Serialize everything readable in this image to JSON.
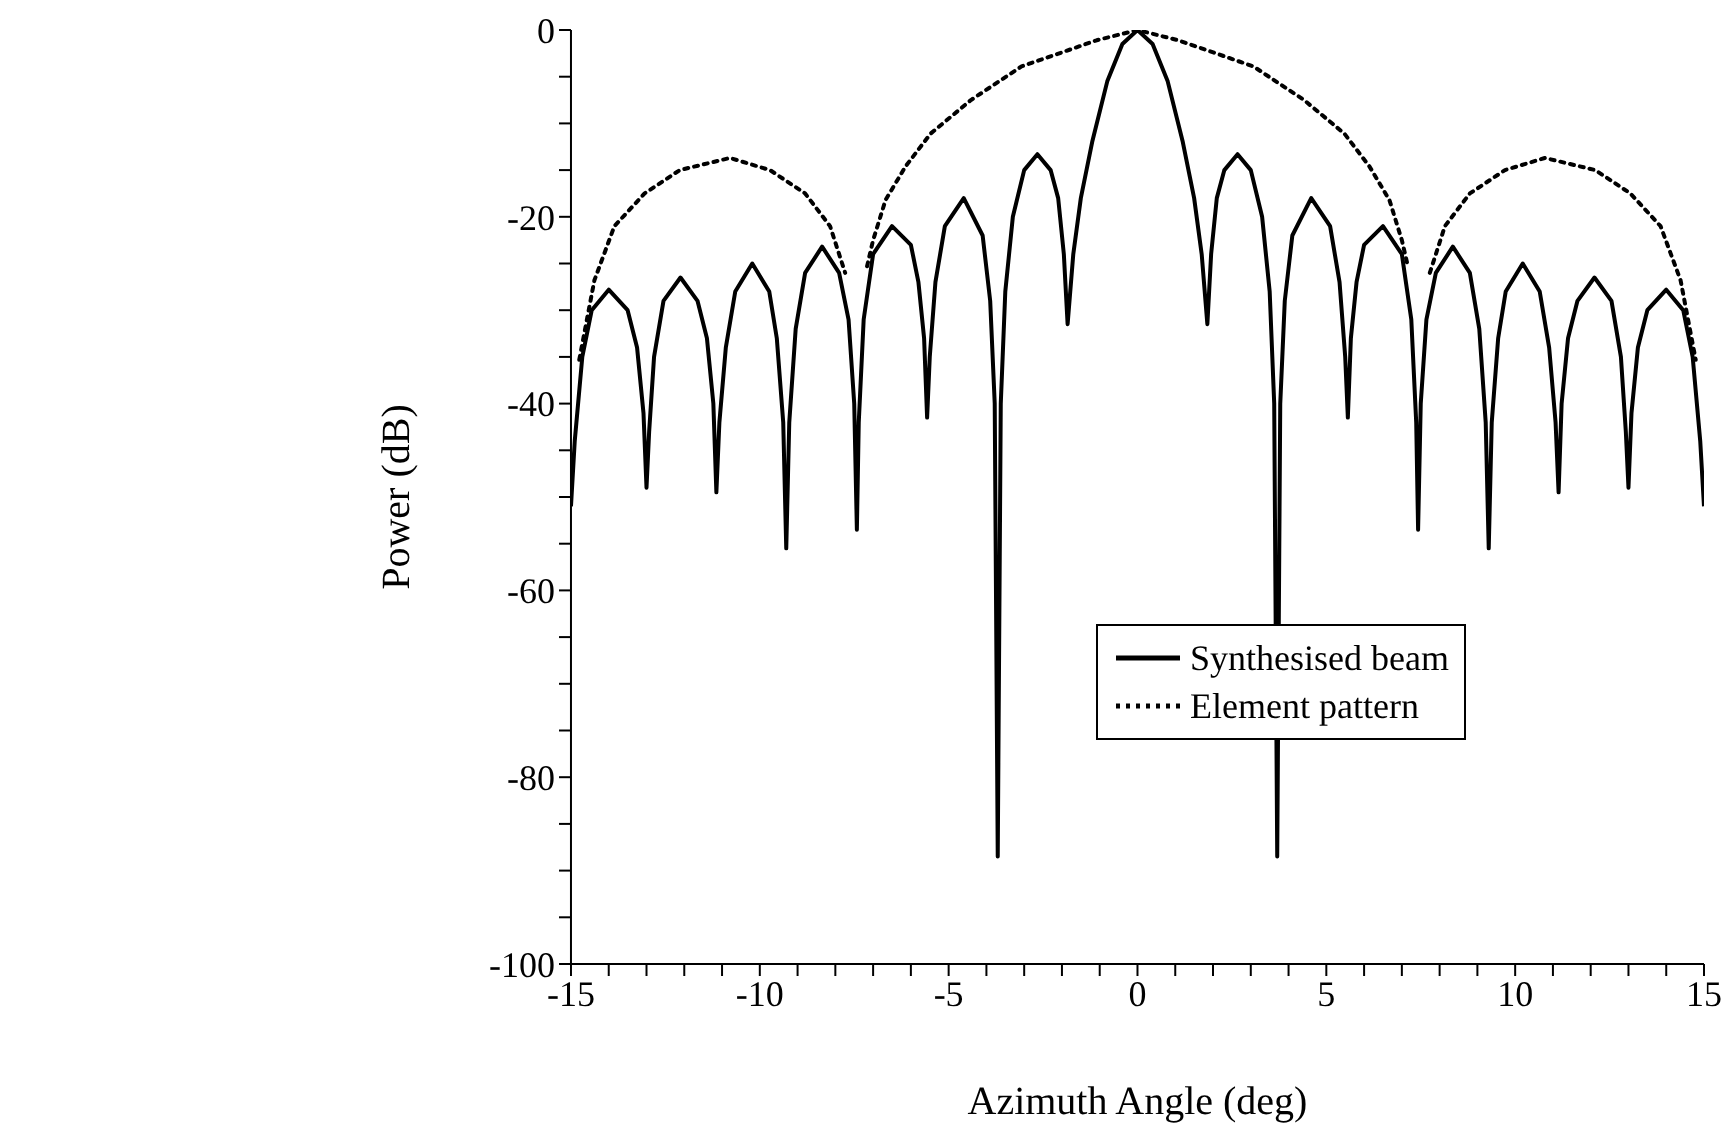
{
  "chart_data": {
    "type": "line",
    "xlabel": "Azimuth Angle (deg)",
    "ylabel": "Power (dB)",
    "xlim": [
      -15,
      15
    ],
    "ylim": [
      -100,
      0
    ],
    "xticks": [
      -15,
      {
        "value": -14,
        "label": null
      },
      {
        "value": -13,
        "label": null
      },
      {
        "value": -12,
        "label": null
      },
      {
        "value": -11,
        "label": null
      },
      -10,
      {
        "value": -9,
        "label": null
      },
      {
        "value": -8,
        "label": null
      },
      {
        "value": -7,
        "label": null
      },
      {
        "value": -6,
        "label": null
      },
      -5,
      {
        "value": -4,
        "label": null
      },
      {
        "value": -3,
        "label": null
      },
      {
        "value": -2,
        "label": null
      },
      {
        "value": -1,
        "label": null
      },
      0,
      {
        "value": 1,
        "label": null
      },
      {
        "value": 2,
        "label": null
      },
      {
        "value": 3,
        "label": null
      },
      {
        "value": 4,
        "label": null
      },
      5,
      {
        "value": 6,
        "label": null
      },
      {
        "value": 7,
        "label": null
      },
      {
        "value": 8,
        "label": null
      },
      {
        "value": 9,
        "label": null
      },
      10,
      {
        "value": 11,
        "label": null
      },
      {
        "value": 12,
        "label": null
      },
      {
        "value": 13,
        "label": null
      },
      {
        "value": 14,
        "label": null
      },
      15
    ],
    "yticks": [
      -100,
      {
        "value": -95,
        "label": null
      },
      {
        "value": -90,
        "label": null
      },
      {
        "value": -85,
        "label": null
      },
      -80,
      {
        "value": -75,
        "label": null
      },
      {
        "value": -70,
        "label": null
      },
      {
        "value": -65,
        "label": null
      },
      -60,
      {
        "value": -55,
        "label": null
      },
      {
        "value": -50,
        "label": null
      },
      {
        "value": -45,
        "label": null
      },
      -40,
      {
        "value": -35,
        "label": null
      },
      {
        "value": -30,
        "label": null
      },
      {
        "value": -25,
        "label": null
      },
      -20,
      {
        "value": -15,
        "label": null
      },
      {
        "value": -10,
        "label": null
      },
      {
        "value": -5,
        "label": null
      },
      0
    ],
    "legend": "right",
    "marker": "none",
    "series": [
      {
        "name": "Synthesised beam",
        "color": "#000000",
        "line_style": "solid",
        "x": [
          -15,
          -14.9,
          -14.7,
          -14.45,
          -14.0,
          -13.5,
          -13.25,
          -13.08,
          -13.0,
          -12.93,
          -12.8,
          -12.55,
          -12.1,
          -11.65,
          -11.4,
          -11.23,
          -11.15,
          -11.07,
          -10.9,
          -10.65,
          -10.2,
          -9.75,
          -9.55,
          -9.38,
          -9.3,
          -9.22,
          -9.05,
          -8.8,
          -8.35,
          -7.9,
          -7.65,
          -7.5,
          -7.43,
          -7.38,
          -7.25,
          -7.0,
          -6.5,
          -6.0,
          -5.8,
          -5.65,
          -5.57,
          -5.5,
          -5.35,
          -5.1,
          -4.6,
          -4.1,
          -3.9,
          -3.78,
          -3.7,
          -3.62,
          -3.5,
          -3.3,
          -3.0,
          -2.65,
          -2.3,
          -2.1,
          -1.95,
          -1.85,
          -1.7,
          -1.5,
          -1.2,
          -0.8,
          -0.4,
          0,
          0.4,
          0.8,
          1.2,
          1.5,
          1.7,
          1.85,
          1.95,
          2.1,
          2.3,
          2.65,
          3.0,
          3.3,
          3.5,
          3.62,
          3.7,
          3.78,
          3.9,
          4.1,
          4.6,
          5.1,
          5.35,
          5.5,
          5.57,
          5.65,
          5.8,
          6.0,
          6.5,
          7.0,
          7.25,
          7.38,
          7.43,
          7.5,
          7.65,
          7.9,
          8.35,
          8.8,
          9.05,
          9.22,
          9.3,
          9.38,
          9.55,
          9.75,
          10.2,
          10.65,
          10.9,
          11.07,
          11.15,
          11.23,
          11.4,
          11.65,
          12.1,
          12.55,
          12.8,
          12.93,
          13.0,
          13.08,
          13.25,
          13.5,
          14.0,
          14.45,
          14.7,
          14.9,
          15
        ],
        "values": [
          -51,
          -44,
          -35,
          -30,
          -27.8,
          -30,
          -34,
          -41,
          -49,
          -43,
          -35,
          -29,
          -26.5,
          -29,
          -33,
          -40,
          -49.5,
          -42,
          -34,
          -28,
          -25,
          -28,
          -33,
          -42,
          -55.5,
          -42,
          -32,
          -26,
          -23.2,
          -26,
          -31,
          -40,
          -53.5,
          -42,
          -31,
          -24,
          -21,
          -23,
          -27,
          -33,
          -41.5,
          -35,
          -27,
          -21,
          -18,
          -22,
          -29,
          -40,
          -88.5,
          -40,
          -28,
          -20,
          -15,
          -13.3,
          -15,
          -18,
          -24,
          -31.5,
          -24,
          -18,
          -12,
          -5.5,
          -1.5,
          0,
          -1.5,
          -5.5,
          -12,
          -18,
          -24,
          -31.5,
          -24,
          -18,
          -15,
          -13.3,
          -15,
          -20,
          -28,
          -40,
          -88.5,
          -40,
          -29,
          -22,
          -18,
          -21,
          -27,
          -35,
          -41.5,
          -33,
          -27,
          -23,
          -21,
          -24,
          -31,
          -42,
          -53.5,
          -40,
          -31,
          -26,
          -23.2,
          -26,
          -32,
          -42,
          -55.5,
          -42,
          -33,
          -28,
          -25,
          -28,
          -34,
          -42,
          -49.5,
          -40,
          -33,
          -29,
          -26.5,
          -29,
          -35,
          -43,
          -49,
          -41,
          -34,
          -30,
          -27.8,
          -30,
          -35,
          -44,
          -51
        ]
      },
      {
        "name": "Element pattern",
        "color": "#000000",
        "line_style": "dotted",
        "x": [
          -14.78,
          -14.38,
          -13.85,
          -13.05,
          -12.12,
          -10.79,
          -9.73,
          -8.8,
          -8.14,
          -7.74,
          null,
          -7.16,
          -7.0,
          -6.67,
          -6.14,
          -5.48,
          -4.41,
          -3.07,
          -1.08,
          0,
          1.08,
          3.07,
          4.41,
          5.48,
          6.14,
          6.67,
          7.0,
          7.16,
          null,
          7.74,
          8.14,
          8.8,
          9.73,
          10.79,
          12.12,
          13.05,
          13.85,
          14.38,
          14.78
        ],
        "values": [
          -35.3,
          -26.8,
          -21,
          -17.5,
          -15,
          -13.7,
          -15,
          -17.5,
          -21,
          -26,
          null,
          -25.3,
          -22.5,
          -18.2,
          -14.6,
          -11.1,
          -7.5,
          -3.9,
          -1.1,
          0,
          -1.1,
          -3.9,
          -7.5,
          -11.1,
          -14.6,
          -18.2,
          -22.5,
          -25.3,
          null,
          -26,
          -21,
          -17.5,
          -15,
          -13.7,
          -15,
          -17.5,
          -21,
          -26.8,
          -35.3
        ]
      }
    ]
  }
}
